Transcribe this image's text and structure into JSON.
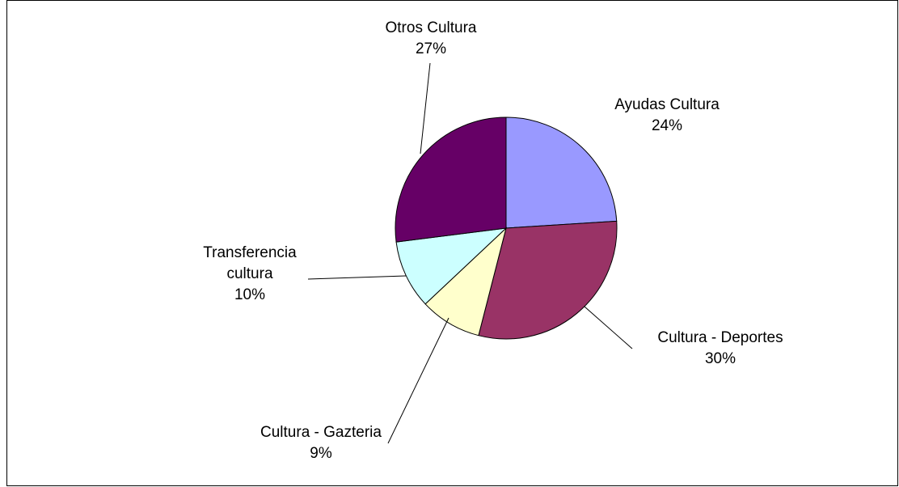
{
  "chart_data": {
    "type": "pie",
    "title": "",
    "legend": "none",
    "slices": [
      {
        "label_lines": [
          "Ayudas Cultura"
        ],
        "percent_label": "24%",
        "value": 24,
        "color": "#9999ff"
      },
      {
        "label_lines": [
          "Cultura - Deportes"
        ],
        "percent_label": "30%",
        "value": 30,
        "color": "#993366"
      },
      {
        "label_lines": [
          "Cultura - Gazteria"
        ],
        "percent_label": "9%",
        "value": 9,
        "color": "#ffffcc"
      },
      {
        "label_lines": [
          "Transferencia",
          "cultura"
        ],
        "percent_label": "10%",
        "value": 10,
        "color": "#ccffff"
      },
      {
        "label_lines": [
          "Otros Cultura"
        ],
        "percent_label": "27%",
        "value": 27,
        "color": "#660066"
      }
    ]
  }
}
